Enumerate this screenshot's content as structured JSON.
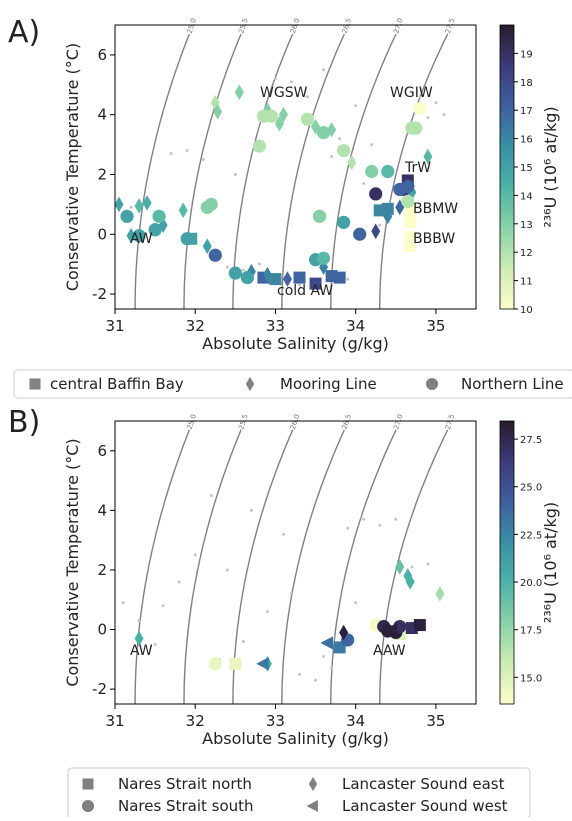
{
  "chart_data": [
    {
      "type": "scatter",
      "panel": "A)",
      "xlabel": "Absolute Salinity (g/kg)",
      "ylabel": "Conservative Temperature (°C)",
      "xlim": [
        31,
        35.5
      ],
      "ylim": [
        -2.5,
        7
      ],
      "xticks": [
        31,
        32,
        33,
        34,
        35
      ],
      "yticks": [
        -2,
        0,
        2,
        4,
        6
      ],
      "isopycnals": [
        {
          "value": 25,
          "label": "25.0"
        },
        {
          "value": 25.5,
          "label": "25.5"
        },
        {
          "value": 26,
          "label": "26.0"
        },
        {
          "value": 26.5,
          "label": "26.5"
        },
        {
          "value": 27,
          "label": "27.0"
        },
        {
          "value": 27.5,
          "label": "27.5"
        }
      ],
      "colorbar": {
        "label": "²³⁶U (10⁶ at/kg)",
        "clim": [
          10,
          20
        ],
        "ticks": [
          10,
          11,
          12,
          13,
          14,
          15,
          16,
          17,
          18,
          19
        ],
        "colormap": [
          "#fdfdcc",
          "#cdecb4",
          "#8bd2a8",
          "#4db3a6",
          "#3a8fa4",
          "#3f5f9e",
          "#3d3b7a",
          "#281a2c"
        ]
      },
      "annotations": [
        "WGSW",
        "WGIW",
        "TrW",
        "BBMW",
        "BBBW",
        "AW",
        "cold AW"
      ],
      "legend_color": "#808080",
      "background": {
        "color": "#c4c4c4",
        "x": [
          31.2,
          31.4,
          31.7,
          31.9,
          32.1,
          32.3,
          32.4,
          32.6,
          32.8,
          33.0,
          33.2,
          33.4,
          33.6,
          33.8,
          34.0,
          34.2,
          34.4,
          34.6,
          34.8,
          34.9,
          35.0,
          35.1,
          33.3,
          33.9,
          34.3,
          32.5,
          33.7,
          34.1
        ],
        "y": [
          0.9,
          1.0,
          2.7,
          2.8,
          2.5,
          -0.8,
          -1.1,
          -1.2,
          -1.0,
          5.2,
          5.1,
          4.6,
          5.5,
          3.2,
          4.3,
          3.0,
          0.5,
          1.0,
          4.6,
          3.9,
          4.4,
          4.0,
          -1.7,
          -1.5,
          0.3,
          2.0,
          2.6,
          1.7
        ]
      },
      "series": [
        {
          "name": "central Baffin Bay",
          "marker": "square",
          "x": [
            31.95,
            32.85,
            33.0,
            33.3,
            33.5,
            33.7,
            33.8,
            34.3,
            34.4,
            34.65,
            34.68,
            34.68,
            34.68,
            34.68
          ],
          "y": [
            -0.15,
            -1.45,
            -1.5,
            -1.45,
            -1.65,
            -1.4,
            -1.45,
            0.8,
            0.85,
            1.8,
            0.8,
            0.4,
            -0.1,
            -0.4
          ],
          "c": [
            15,
            17,
            16,
            17,
            18,
            17,
            17,
            16,
            16,
            19,
            10,
            10,
            10,
            10
          ]
        },
        {
          "name": "Mooring Line",
          "marker": "diamond",
          "x": [
            31.05,
            31.3,
            31.4,
            31.6,
            31.85,
            32.25,
            32.28,
            32.55,
            32.9,
            33.05,
            33.1,
            33.5,
            33.7,
            33.95,
            32.15,
            32.7,
            32.9,
            33.15,
            33.6,
            34.4,
            34.9,
            34.25,
            34.55,
            34.7,
            31.2
          ],
          "y": [
            1.0,
            0.95,
            1.05,
            0.3,
            0.8,
            4.4,
            4.1,
            4.75,
            4.15,
            3.7,
            4.0,
            3.6,
            3.5,
            2.4,
            -0.4,
            -1.25,
            -1.35,
            -1.5,
            -1.1,
            0.6,
            2.6,
            0.1,
            0.9,
            1.4,
            -0.05
          ],
          "c": [
            15,
            14,
            14.5,
            15,
            14,
            12,
            13,
            13,
            13,
            13,
            13,
            13,
            13,
            12,
            15,
            16,
            16,
            17,
            16,
            16,
            14,
            18,
            17,
            15,
            15
          ]
        },
        {
          "name": "Northern Line",
          "marker": "circle",
          "x": [
            31.15,
            31.3,
            31.55,
            31.5,
            32.15,
            32.2,
            32.85,
            32.95,
            32.8,
            33.4,
            33.6,
            33.85,
            34.2,
            34.4,
            34.8,
            34.7,
            34.75,
            33.55,
            33.85,
            34.05,
            34.25,
            34.6,
            34.65,
            34.55,
            34.65,
            32.25,
            32.5,
            32.65,
            33.5,
            33.6,
            31.9
          ],
          "y": [
            0.6,
            -0.05,
            0.6,
            0.15,
            0.9,
            1.0,
            3.95,
            3.95,
            2.95,
            3.85,
            3.4,
            2.8,
            2.1,
            2.1,
            4.2,
            3.55,
            3.55,
            0.6,
            0.4,
            0.0,
            1.35,
            1.5,
            1.6,
            1.5,
            1.1,
            -0.7,
            -1.3,
            -1.45,
            -0.85,
            -0.8,
            -0.15
          ],
          "c": [
            15,
            15,
            14,
            15,
            13,
            13,
            12,
            12,
            12,
            12,
            13,
            12,
            13,
            14,
            10,
            12,
            12,
            13,
            15,
            17,
            19,
            19,
            17,
            17,
            12,
            17,
            15,
            15,
            15,
            14,
            15
          ]
        }
      ]
    },
    {
      "type": "scatter",
      "panel": "B)",
      "xlabel": "Absolute Salinity (g/kg)",
      "ylabel": "Conservative Temperature (°C)",
      "xlim": [
        31,
        35.5
      ],
      "ylim": [
        -2.5,
        7
      ],
      "xticks": [
        31,
        32,
        33,
        34,
        35
      ],
      "yticks": [
        -2,
        0,
        2,
        4,
        6
      ],
      "isopycnals": [
        {
          "value": 25,
          "label": "25.0"
        },
        {
          "value": 25.5,
          "label": "25.5"
        },
        {
          "value": 26,
          "label": "26.0"
        },
        {
          "value": 26.5,
          "label": "26.5"
        },
        {
          "value": 27,
          "label": "27.0"
        },
        {
          "value": 27.5,
          "label": "27.5"
        }
      ],
      "colorbar": {
        "label": "²³⁶U (10⁶ at/kg)",
        "clim": [
          13.6,
          28.45
        ],
        "ticks": [
          {
            "value": 15,
            "label": "15.0"
          },
          {
            "value": 17.5,
            "label": "17.5"
          },
          {
            "value": 20,
            "label": "20.0"
          },
          {
            "value": 22.5,
            "label": "22.5"
          },
          {
            "value": 25,
            "label": "25.0"
          },
          {
            "value": 27.5,
            "label": "27.5"
          }
        ],
        "colormap": [
          "#fdfdcc",
          "#cdecb4",
          "#8bd2a8",
          "#4db3a6",
          "#3a8fa4",
          "#3f5f9e",
          "#3d3b7a",
          "#281a2c"
        ]
      },
      "annotations": [
        "AW",
        "AAW"
      ],
      "legend_color": "#808080",
      "background": {
        "color": "#c4c4c4",
        "x": [
          31.1,
          31.3,
          31.6,
          31.8,
          32.0,
          32.2,
          32.4,
          32.6,
          32.9,
          33.1,
          33.3,
          33.5,
          33.7,
          33.9,
          34.1,
          34.3,
          34.5,
          34.7,
          34.9,
          32.3,
          33.2,
          34.0,
          32.7,
          33.6,
          31.5
        ],
        "y": [
          0.9,
          0.3,
          0.8,
          1.6,
          2.5,
          4.5,
          2.0,
          -0.4,
          0.6,
          3.2,
          -1.5,
          -1.7,
          -1.3,
          3.4,
          3.7,
          3.5,
          3.7,
          2.1,
          2.2,
          -1.0,
          1.2,
          0.9,
          4.0,
          -0.9,
          -0.5
        ]
      },
      "series": [
        {
          "name": "Nares Strait north",
          "marker": "square",
          "x": [
            32.5,
            33.8,
            34.55,
            34.7,
            34.8
          ],
          "y": [
            -1.15,
            -0.6,
            -0.15,
            0.05,
            0.15
          ],
          "c": [
            14.5,
            23,
            15,
            27,
            28
          ]
        },
        {
          "name": "Nares Strait south",
          "marker": "circle",
          "x": [
            32.25,
            33.9,
            34.25,
            34.35,
            34.4,
            34.5,
            34.55
          ],
          "y": [
            -1.15,
            -0.35,
            0.15,
            0.1,
            -0.05,
            -0.1,
            0.1
          ],
          "c": [
            14.5,
            24,
            14,
            27.5,
            28,
            28,
            27
          ]
        },
        {
          "name": "Lancaster Sound east",
          "marker": "diamond",
          "x": [
            31.3,
            33.85,
            34.55,
            34.65,
            34.68,
            35.05,
            32.9
          ],
          "y": [
            -0.3,
            -0.1,
            2.1,
            1.8,
            1.6,
            1.2,
            -1.15
          ],
          "c": [
            20,
            28,
            19,
            20,
            20,
            17,
            20
          ]
        },
        {
          "name": "Lancaster Sound west",
          "marker": "triangle",
          "x": [
            32.85,
            33.65,
            34.45
          ],
          "y": [
            -1.15,
            -0.45,
            0.0
          ],
          "c": [
            23,
            23.5,
            28
          ]
        }
      ]
    }
  ]
}
